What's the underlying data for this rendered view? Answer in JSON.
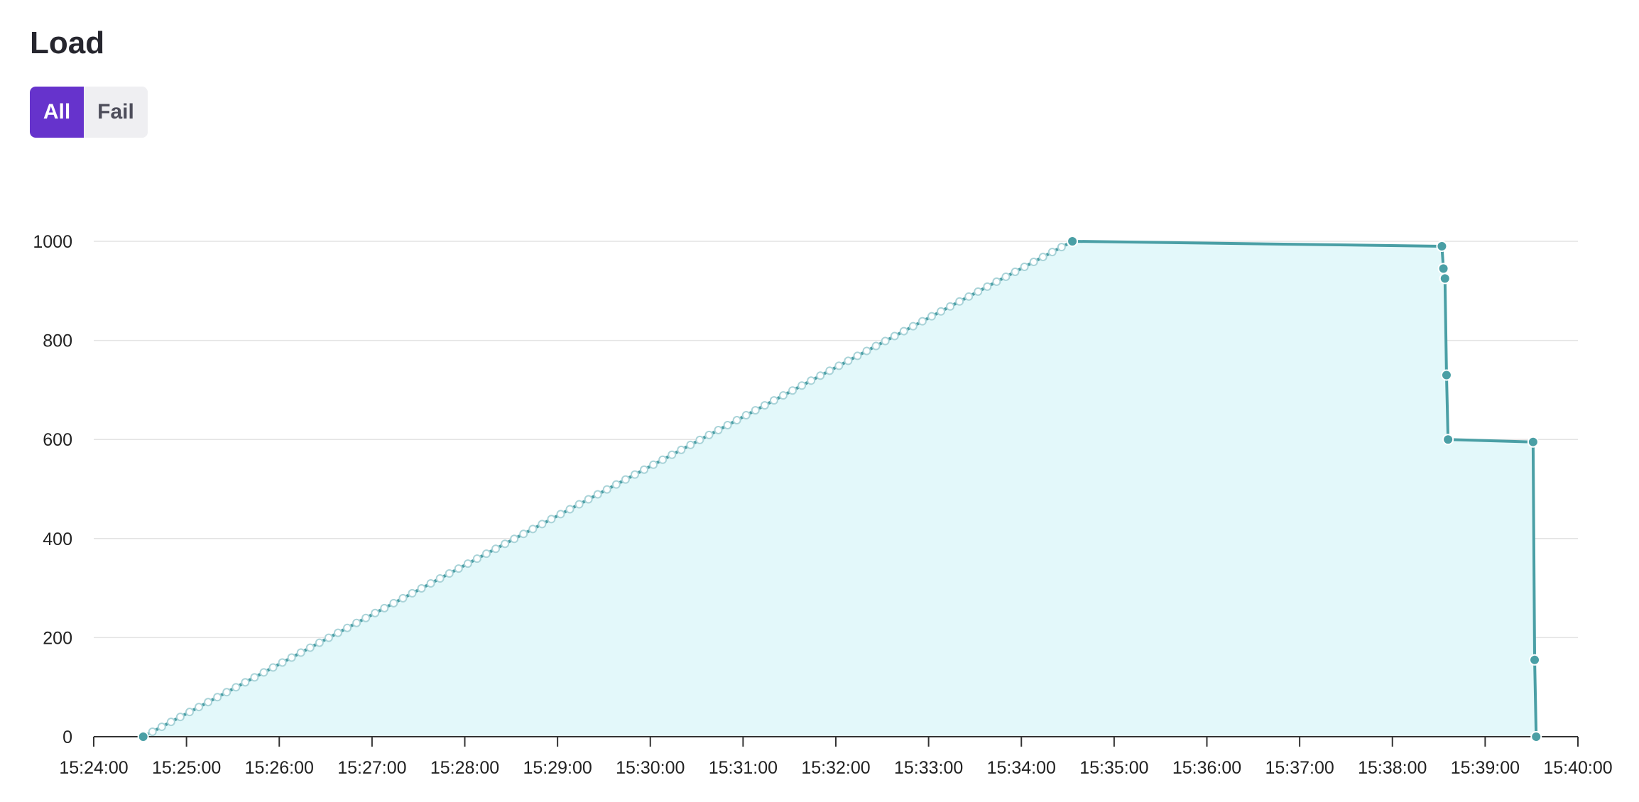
{
  "header": {
    "title": "Load"
  },
  "filters": {
    "all_label": "All",
    "fail_label": "Fail",
    "active": "All"
  },
  "colors": {
    "accent": "#6633cc",
    "line": "#4a9fa5",
    "area": "#e3f8fa",
    "grid": "#e3e3e3",
    "axis": "#333333"
  },
  "chart_data": {
    "type": "area",
    "title": "",
    "xlabel": "",
    "ylabel": "",
    "grid": true,
    "legend": "none",
    "xlim": [
      "15:24:00",
      "15:40:00"
    ],
    "ylim": [
      0,
      1000
    ],
    "x_ticks": [
      "15:24:00",
      "15:25:00",
      "15:26:00",
      "15:27:00",
      "15:28:00",
      "15:29:00",
      "15:30:00",
      "15:31:00",
      "15:32:00",
      "15:33:00",
      "15:34:00",
      "15:35:00",
      "15:36:00",
      "15:37:00",
      "15:38:00",
      "15:39:00",
      "15:40:00"
    ],
    "y_ticks": [
      0,
      200,
      400,
      600,
      800,
      1000
    ],
    "series": [
      {
        "x": [
          "15:24:32",
          "15:34:33",
          "15:38:32",
          "15:38:33",
          "15:38:34",
          "15:38:35",
          "15:38:36",
          "15:39:31",
          "15:39:32",
          "15:39:33"
        ],
        "y": [
          0,
          1000,
          990,
          945,
          925,
          730,
          600,
          595,
          155,
          0
        ]
      }
    ],
    "ramp": {
      "from": [
        "15:24:32",
        0
      ],
      "to": [
        "15:34:33",
        1000
      ],
      "step_seconds": 6,
      "style": "faded"
    }
  }
}
